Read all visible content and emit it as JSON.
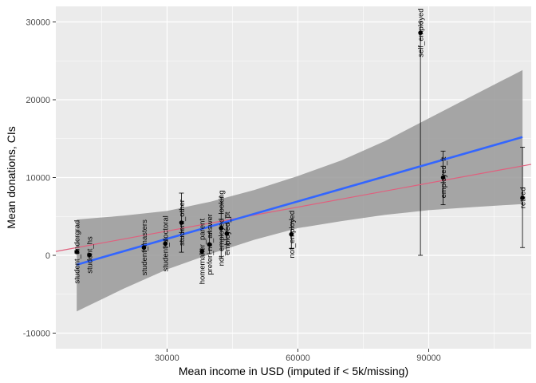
{
  "chart_data": {
    "type": "scatter",
    "title": "",
    "xlabel": "Mean income in USD (imputed if < 5k/missing)",
    "ylabel": "Mean donations, CIs",
    "xlim": [
      4500,
      113500
    ],
    "ylim": [
      -12000,
      32000
    ],
    "x_ticks": [
      30000,
      60000,
      90000
    ],
    "x_tick_labels": [
      "30000",
      "60000",
      "90000"
    ],
    "y_ticks": [
      -10000,
      0,
      10000,
      20000,
      30000
    ],
    "y_tick_labels": [
      "-10000",
      "0",
      "10000",
      "20000",
      "30000"
    ],
    "grid": true,
    "legend": "none",
    "points": [
      {
        "label": "student_undergrad",
        "x": 9300,
        "y": 450,
        "lo": 300,
        "hi": 600
      },
      {
        "label": "student_hs",
        "x": 12200,
        "y": 50,
        "lo": -100,
        "hi": 200
      },
      {
        "label": "student_masters",
        "x": 24700,
        "y": 1000,
        "lo": 600,
        "hi": 1400
      },
      {
        "label": "student_doctoral",
        "x": 29600,
        "y": 1500,
        "lo": 1100,
        "hi": 1900
      },
      {
        "label": "student_other",
        "x": 33300,
        "y": 4200,
        "lo": 400,
        "hi": 8000
      },
      {
        "label": "homemaker_parent",
        "x": 38000,
        "y": 500,
        "lo": 200,
        "hi": 800
      },
      {
        "label": "prefer_no_answer",
        "x": 39700,
        "y": 1400,
        "lo": 200,
        "hi": 3000
      },
      {
        "label": "not_employed_looking",
        "x": 42400,
        "y": 3500,
        "lo": -400,
        "hi": 7500
      },
      {
        "label": "employed_pt",
        "x": 43700,
        "y": 2800,
        "lo": 1400,
        "hi": 4200
      },
      {
        "label": "not_employed",
        "x": 58500,
        "y": 2700,
        "lo": 900,
        "hi": 4600
      },
      {
        "label": "self_employed",
        "x": 88100,
        "y": 28600,
        "lo": 0,
        "hi": 30000
      },
      {
        "label": "employed_ft",
        "x": 93300,
        "y": 10000,
        "lo": 6500,
        "hi": 13400
      },
      {
        "label": "retired",
        "x": 111500,
        "y": 7400,
        "lo": 1000,
        "hi": 13900
      }
    ],
    "trend_lines": [
      {
        "kind": "ols_fit",
        "color": "#3366ff",
        "x": [
          9300,
          111500
        ],
        "y": [
          -1200,
          15200
        ]
      },
      {
        "kind": "reference_line",
        "color": "#e0607e",
        "x": [
          4500,
          113500
        ],
        "y": [
          500,
          11700
        ]
      }
    ],
    "confidence_band": {
      "color": "#999999",
      "x": [
        9300,
        20000,
        30000,
        40000,
        50000,
        60000,
        70000,
        80000,
        90000,
        100000,
        111500
      ],
      "lower": [
        -7200,
        -4300,
        -1800,
        200,
        2000,
        3500,
        4400,
        5200,
        5800,
        6200,
        6600
      ],
      "upper": [
        4600,
        5100,
        5700,
        6900,
        8400,
        10200,
        12200,
        14700,
        17600,
        20500,
        23800
      ]
    },
    "colors": {
      "panel": "#ebebeb",
      "grid_major": "#ffffff",
      "point": "#000000"
    }
  }
}
